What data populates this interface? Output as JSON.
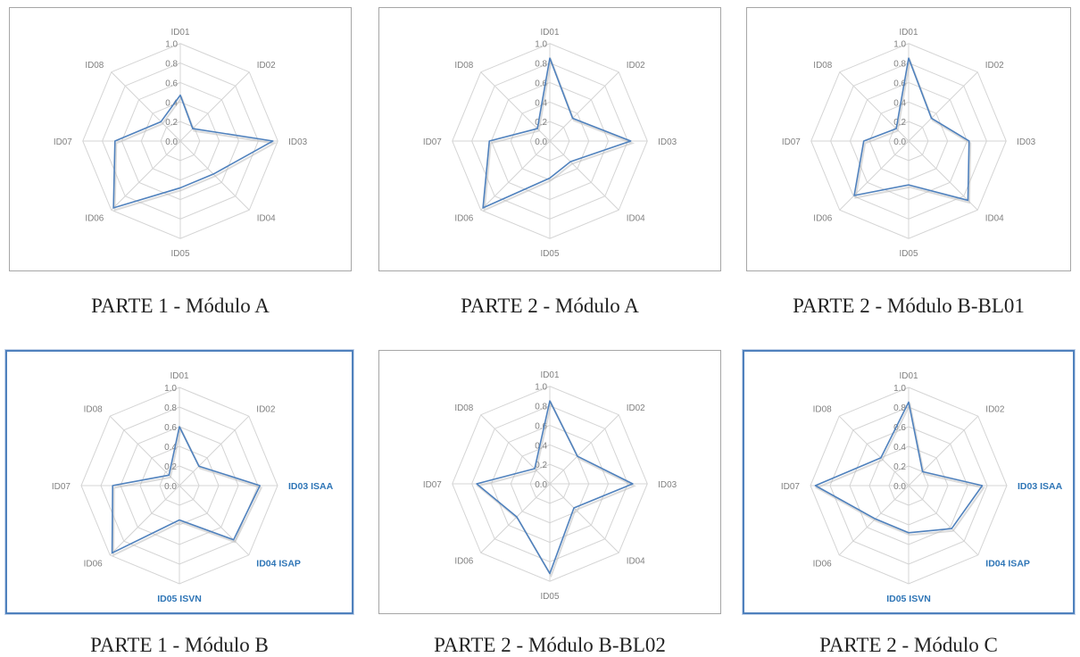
{
  "chart_data": [
    {
      "type": "radar",
      "caption": "PARTE 1 - Módulo A",
      "axes": [
        "ID01",
        "ID02",
        "ID03",
        "ID04",
        "ID05",
        "ID06",
        "ID07",
        "ID08"
      ],
      "ticks": [
        "0.0",
        "0.2",
        "0.4",
        "0.6",
        "0.8",
        "1.0"
      ],
      "rlim": [
        0,
        1
      ],
      "series": [
        {
          "values": [
            0.47,
            0.18,
            0.95,
            0.48,
            0.48,
            0.97,
            0.67,
            0.28
          ]
        }
      ],
      "color": "#4f81bd",
      "highlighted": false
    },
    {
      "type": "radar",
      "caption": "PARTE 2 - Módulo A",
      "axes": [
        "ID01",
        "ID02",
        "ID03",
        "ID04",
        "ID05",
        "ID06",
        "ID07",
        "ID08"
      ],
      "ticks": [
        "0.0",
        "0.2",
        "0.4",
        "0.6",
        "0.8",
        "1.0"
      ],
      "rlim": [
        0,
        1
      ],
      "series": [
        {
          "values": [
            0.85,
            0.33,
            0.83,
            0.3,
            0.38,
            0.97,
            0.62,
            0.18
          ]
        }
      ],
      "color": "#4f81bd",
      "highlighted": false
    },
    {
      "type": "radar",
      "caption": "PARTE 2 - Módulo B-BL01",
      "axes": [
        "ID01",
        "ID02",
        "ID03",
        "ID04",
        "ID05",
        "ID06",
        "ID07",
        "ID08"
      ],
      "ticks": [
        "0.0",
        "0.2",
        "0.4",
        "0.6",
        "0.8",
        "1.0"
      ],
      "rlim": [
        0,
        1
      ],
      "series": [
        {
          "values": [
            0.85,
            0.33,
            0.62,
            0.86,
            0.45,
            0.79,
            0.46,
            0.18
          ]
        }
      ],
      "color": "#4f81bd",
      "highlighted": false
    },
    {
      "type": "radar",
      "caption": "PARTE 1 - Módulo B",
      "axes": [
        "ID01",
        "ID02",
        "ID03 ISAA",
        "ID04 ISAP",
        "ID05 ISVN",
        "ID06",
        "ID07",
        "ID08"
      ],
      "highlighted_axes": [
        2,
        3,
        4
      ],
      "ticks": [
        "0.0",
        "0.2",
        "0.4",
        "0.6",
        "0.8",
        "1.0"
      ],
      "rlim": [
        0,
        1
      ],
      "series": [
        {
          "values": [
            0.6,
            0.28,
            0.82,
            0.78,
            0.35,
            0.97,
            0.68,
            0.15
          ]
        }
      ],
      "color": "#4f81bd",
      "highlighted": true
    },
    {
      "type": "radar",
      "caption": "PARTE 2 - Módulo B-BL02",
      "axes": [
        "ID01",
        "ID02",
        "ID03",
        "ID04",
        "ID05",
        "ID06",
        "ID07",
        "ID08"
      ],
      "ticks": [
        "0.0",
        "0.2",
        "0.4",
        "0.6",
        "0.8",
        "1.0"
      ],
      "rlim": [
        0,
        1
      ],
      "series": [
        {
          "values": [
            0.85,
            0.4,
            0.85,
            0.35,
            0.92,
            0.48,
            0.75,
            0.22
          ]
        }
      ],
      "color": "#4f81bd",
      "highlighted": false
    },
    {
      "type": "radar",
      "caption": "PARTE 2 - Módulo C",
      "axes": [
        "ID01",
        "ID02",
        "ID03 ISAA",
        "ID04 ISAP",
        "ID05 ISVN",
        "ID06",
        "ID07",
        "ID08"
      ],
      "highlighted_axes": [
        2,
        3,
        4
      ],
      "ticks": [
        "0.0",
        "0.2",
        "0.4",
        "0.6",
        "0.8",
        "1.0"
      ],
      "rlim": [
        0,
        1
      ],
      "series": [
        {
          "values": [
            0.85,
            0.2,
            0.75,
            0.62,
            0.48,
            0.48,
            0.95,
            0.4
          ]
        }
      ],
      "color": "#4f81bd",
      "highlighted": true
    }
  ]
}
